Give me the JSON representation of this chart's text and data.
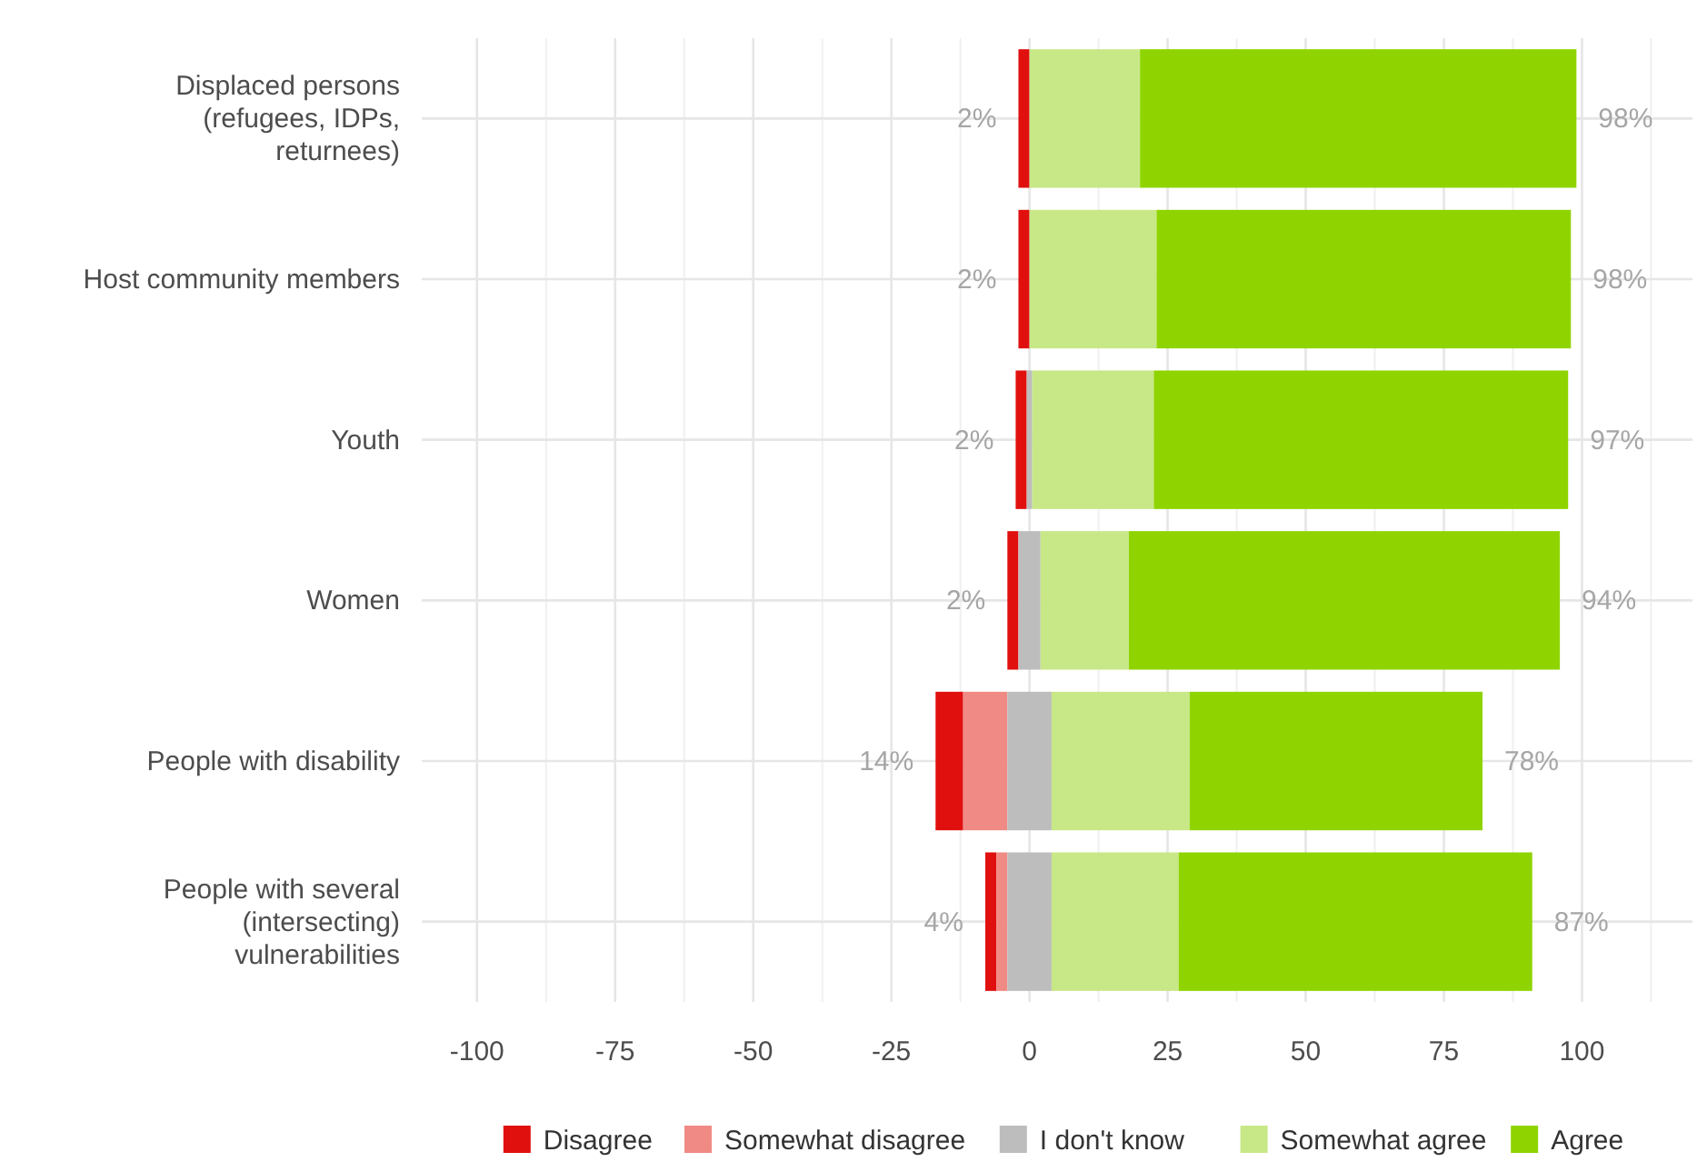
{
  "chart_data": {
    "type": "bar",
    "orientation": "horizontal",
    "categories": [
      "Displaced persons\n(refugees, IDPs,\nreturnees)",
      "Host community members",
      "Youth",
      "Women",
      "People with disability",
      "People with several\n(intersecting)\nvulnerabilities"
    ],
    "series": [
      {
        "name": "Disagree",
        "color": "#e0100f",
        "values": [
          2,
          2,
          2,
          2,
          5,
          2
        ],
        "base": [
          -2,
          -2,
          -2.5,
          -4,
          -17,
          -8
        ]
      },
      {
        "name": "Somewhat disagree",
        "color": "#f08a84",
        "values": [
          null,
          null,
          null,
          null,
          8,
          2
        ],
        "base": [
          null,
          null,
          null,
          null,
          -12,
          -6
        ]
      },
      {
        "name": "I don't know",
        "color": "#bdbdbd",
        "values": [
          null,
          null,
          1,
          4,
          8,
          8
        ],
        "base": [
          null,
          null,
          -0.5,
          -2,
          -4,
          -4
        ]
      },
      {
        "name": "Somewhat agree",
        "color": "#c8e887",
        "values": [
          20,
          23,
          22,
          16,
          25,
          23
        ],
        "base": [
          0,
          0,
          0.5,
          2,
          4,
          4
        ]
      },
      {
        "name": "Agree",
        "color": "#8fd400",
        "values": [
          79,
          75,
          75,
          78,
          53,
          64
        ],
        "base": [
          20,
          23,
          22.5,
          18,
          29,
          27
        ]
      }
    ],
    "annotations": [
      "2%",
      "2%",
      "2%",
      "2%",
      "14%",
      "4%",
      "98%",
      "98%",
      "97%",
      "94%",
      "78%",
      "87%"
    ],
    "xlim": [
      -110,
      120
    ],
    "xticks": [
      -100,
      -75,
      -50,
      -25,
      0,
      25,
      50,
      75,
      100
    ],
    "grid": true,
    "legend": "bottom"
  }
}
